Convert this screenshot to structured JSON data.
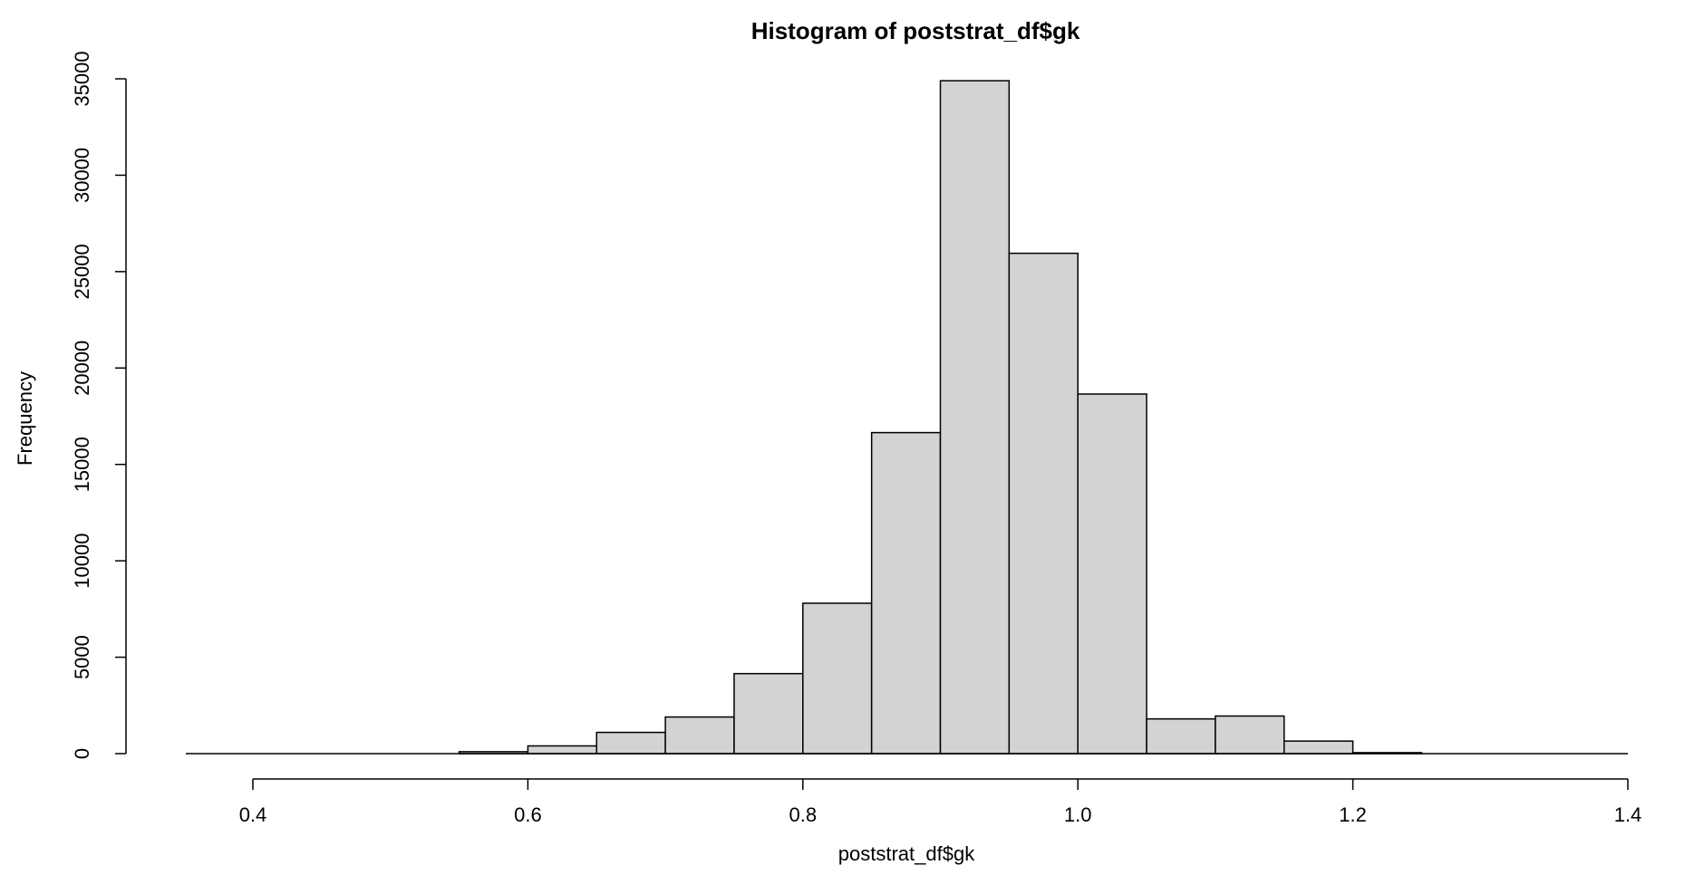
{
  "chart_data": {
    "type": "bar",
    "title": "Histogram of poststrat_df$gk",
    "xlabel": "poststrat_df$gk",
    "ylabel": "Frequency",
    "xlim": [
      0.35,
      1.4
    ],
    "ylim": [
      0,
      35000
    ],
    "x_ticks": [
      "0.4",
      "0.6",
      "0.8",
      "1.0",
      "1.2",
      "1.4"
    ],
    "x_tick_values": [
      0.4,
      0.6,
      0.8,
      1.0,
      1.2,
      1.4
    ],
    "y_ticks": [
      "0",
      "5000",
      "10000",
      "15000",
      "20000",
      "25000",
      "30000",
      "35000"
    ],
    "y_tick_values": [
      0,
      5000,
      10000,
      15000,
      20000,
      25000,
      30000,
      35000
    ],
    "bins": [
      {
        "x0": 0.35,
        "x1": 0.4,
        "value": 0
      },
      {
        "x0": 0.4,
        "x1": 0.45,
        "value": 0
      },
      {
        "x0": 0.45,
        "x1": 0.5,
        "value": 0
      },
      {
        "x0": 0.5,
        "x1": 0.55,
        "value": 0
      },
      {
        "x0": 0.55,
        "x1": 0.6,
        "value": 100
      },
      {
        "x0": 0.6,
        "x1": 0.65,
        "value": 400
      },
      {
        "x0": 0.65,
        "x1": 0.7,
        "value": 1100
      },
      {
        "x0": 0.7,
        "x1": 0.75,
        "value": 1900
      },
      {
        "x0": 0.75,
        "x1": 0.8,
        "value": 4150
      },
      {
        "x0": 0.8,
        "x1": 0.85,
        "value": 7800
      },
      {
        "x0": 0.85,
        "x1": 0.9,
        "value": 16650
      },
      {
        "x0": 0.9,
        "x1": 0.95,
        "value": 34900
      },
      {
        "x0": 0.95,
        "x1": 1.0,
        "value": 25950
      },
      {
        "x0": 1.0,
        "x1": 1.05,
        "value": 18650
      },
      {
        "x0": 1.05,
        "x1": 1.1,
        "value": 1800
      },
      {
        "x0": 1.1,
        "x1": 1.15,
        "value": 1950
      },
      {
        "x0": 1.15,
        "x1": 1.2,
        "value": 650
      },
      {
        "x0": 1.2,
        "x1": 1.25,
        "value": 50
      },
      {
        "x0": 1.25,
        "x1": 1.3,
        "value": 0
      },
      {
        "x0": 1.3,
        "x1": 1.35,
        "value": 0
      },
      {
        "x0": 1.35,
        "x1": 1.4,
        "value": 0
      }
    ],
    "bar_color": "#d3d3d3",
    "grid": false
  }
}
